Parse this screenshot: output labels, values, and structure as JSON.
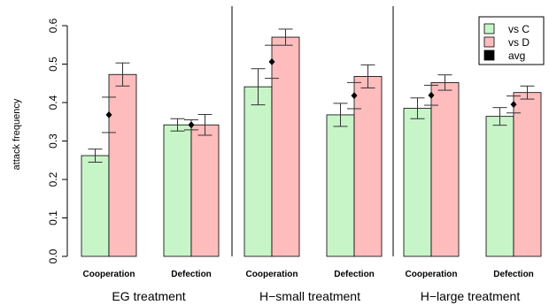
{
  "chart_data": {
    "type": "bar",
    "ylabel": "attack frequency",
    "ylim": [
      0,
      0.6
    ],
    "yticks": [
      "0.0",
      "0.1",
      "0.2",
      "0.3",
      "0.4",
      "0.5",
      "0.6"
    ],
    "grid": false,
    "legend_position": "top-right",
    "legend": [
      {
        "label": "vs C",
        "color": "#c8f5c8"
      },
      {
        "label": "vs D",
        "color": "#ffbcbc"
      },
      {
        "label": "avg",
        "color": "#000000"
      }
    ],
    "groups": [
      {
        "label": "EG treatment",
        "categories": [
          {
            "label": "Cooperation",
            "vs_C": {
              "value": 0.262,
              "err": 0.017
            },
            "vs_D": {
              "value": 0.473,
              "err": 0.03
            },
            "avg": {
              "value": 0.368,
              "err": 0.046
            }
          },
          {
            "label": "Defection",
            "vs_C": {
              "value": 0.342,
              "err": 0.016
            },
            "vs_D": {
              "value": 0.342,
              "err": 0.027
            },
            "avg": {
              "value": 0.342,
              "err": 0.013
            }
          }
        ]
      },
      {
        "label": "H−small treatment",
        "categories": [
          {
            "label": "Cooperation",
            "vs_C": {
              "value": 0.441,
              "err": 0.047
            },
            "vs_D": {
              "value": 0.57,
              "err": 0.021
            },
            "avg": {
              "value": 0.506,
              "err": 0.043
            }
          },
          {
            "label": "Defection",
            "vs_C": {
              "value": 0.368,
              "err": 0.03
            },
            "vs_D": {
              "value": 0.468,
              "err": 0.03
            },
            "avg": {
              "value": 0.418,
              "err": 0.034
            }
          }
        ]
      },
      {
        "label": "H−large treatment",
        "categories": [
          {
            "label": "Cooperation",
            "vs_C": {
              "value": 0.385,
              "err": 0.027
            },
            "vs_D": {
              "value": 0.452,
              "err": 0.02
            },
            "avg": {
              "value": 0.419,
              "err": 0.026
            }
          },
          {
            "label": "Defection",
            "vs_C": {
              "value": 0.364,
              "err": 0.023
            },
            "vs_D": {
              "value": 0.426,
              "err": 0.017
            },
            "avg": {
              "value": 0.395,
              "err": 0.022
            }
          }
        ]
      }
    ]
  }
}
